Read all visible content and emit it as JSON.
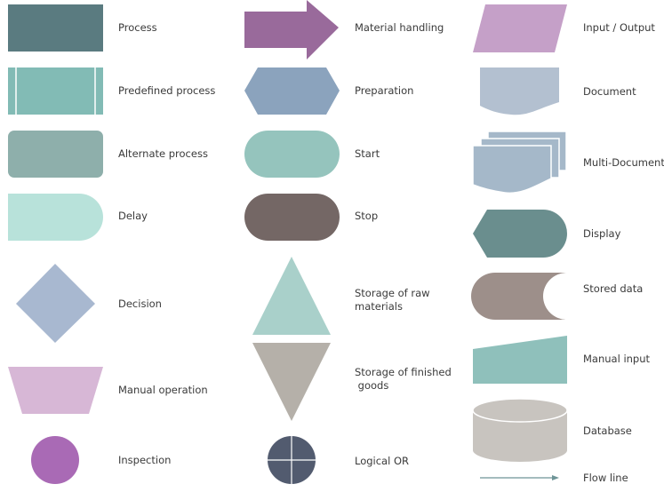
{
  "labels": {
    "process": "Process",
    "predefined_process": "Predefined process",
    "alternate_process": "Alternate process",
    "delay": "Delay",
    "decision": "Decision",
    "manual_operation": "Manual operation",
    "inspection": "Inspection",
    "material_handling": "Material handling",
    "preparation": "Preparation",
    "start": "Start",
    "stop": "Stop",
    "storage_raw_1": "Storage of raw",
    "storage_raw_2": "materials",
    "storage_finished_1": "Storage of finished",
    "storage_finished_2": " goods",
    "logical_or": "Logical OR",
    "input_output": "Input / Output",
    "document": "Document",
    "multi_document": "Multi-Document",
    "display": "Display",
    "stored_data": "Stored data",
    "manual_input": "Manual input",
    "database": "Database",
    "flow_line": "Flow line"
  },
  "colors": {
    "process": "#5a7b80",
    "predefined": "#82bbb5",
    "alternate": "#8eafab",
    "delay": "#b8e2da",
    "decision": "#a8b8d0",
    "manual_op": "#d7b7d6",
    "inspection": "#a96ab5",
    "material": "#996a9b",
    "preparation": "#8ba3bd",
    "start": "#95c4bd",
    "stop": "#746765",
    "raw": "#a9d0ca",
    "finished": "#b5b0a9",
    "logical_or": "#525b6f",
    "io": "#c5a0c8",
    "document": "#b3c0d0",
    "multidoc": "#a5b8c9",
    "display": "#6a8e8e",
    "stored": "#9d8f8a",
    "manual_input": "#8fc0bb",
    "database": "#c8c4bf",
    "flow": "#6e9497"
  }
}
